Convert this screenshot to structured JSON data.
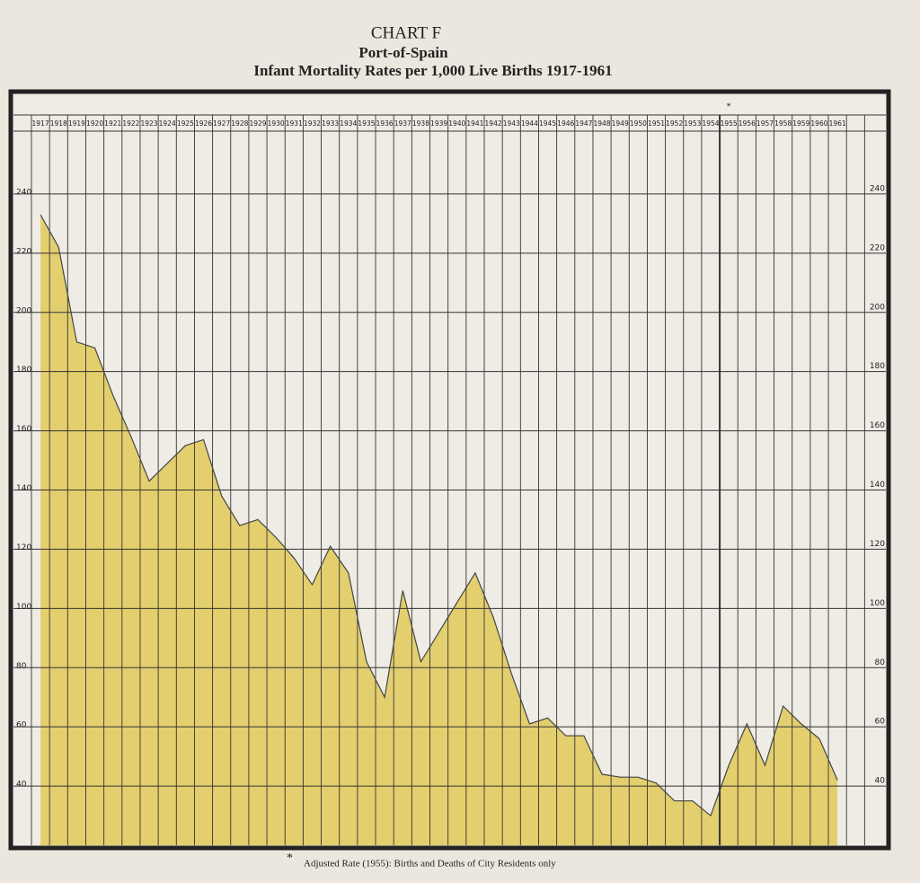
{
  "chart_data": {
    "type": "area",
    "title": "CHART F",
    "subtitle": "Port-of-Spain",
    "subtitle2": "Infant Mortality Rates per 1,000  Live Births 1917-1961",
    "footnote": "Adjusted Rate (1955): Births and Deaths of City Residents only",
    "footnote_marker": "*",
    "categories": [
      "1917",
      "1918",
      "1919",
      "1920",
      "1921",
      "1922",
      "1923",
      "1924",
      "1925",
      "1926",
      "1927",
      "1928",
      "1929",
      "1930",
      "1931",
      "1932",
      "1933",
      "1934",
      "1935",
      "1936",
      "1937",
      "1938",
      "1939",
      "1940",
      "1941",
      "1942",
      "1943",
      "1944",
      "1945",
      "1946",
      "1947",
      "1948",
      "1949",
      "1950",
      "1951",
      "1952",
      "1953",
      "1954",
      "1955",
      "1956",
      "1957",
      "1958",
      "1959",
      "1960",
      "1961"
    ],
    "values": [
      233,
      222,
      190,
      188,
      172,
      158,
      143,
      149,
      155,
      157,
      138,
      128,
      130,
      124,
      117,
      108,
      121,
      112,
      82,
      70,
      106,
      82,
      92,
      102,
      112,
      97,
      78,
      61,
      63,
      57,
      57,
      44,
      43,
      43,
      41,
      35,
      35,
      30,
      47,
      61,
      47,
      67,
      61,
      56,
      42
    ],
    "marked_category": 38,
    "color": "#e3cf6e",
    "line_color": "#444444",
    "ylim": [
      20,
      260
    ],
    "yticks": [
      40,
      60,
      80,
      100,
      120,
      140,
      160,
      180,
      200,
      220,
      240
    ],
    "grid": true
  }
}
